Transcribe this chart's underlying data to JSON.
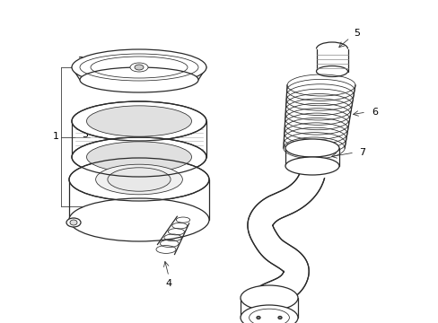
{
  "background_color": "#ffffff",
  "line_color": "#2a2a2a",
  "label_color": "#000000",
  "figsize": [
    4.89,
    3.6
  ],
  "dpi": 100,
  "lw": 0.9,
  "lw_thin": 0.55
}
